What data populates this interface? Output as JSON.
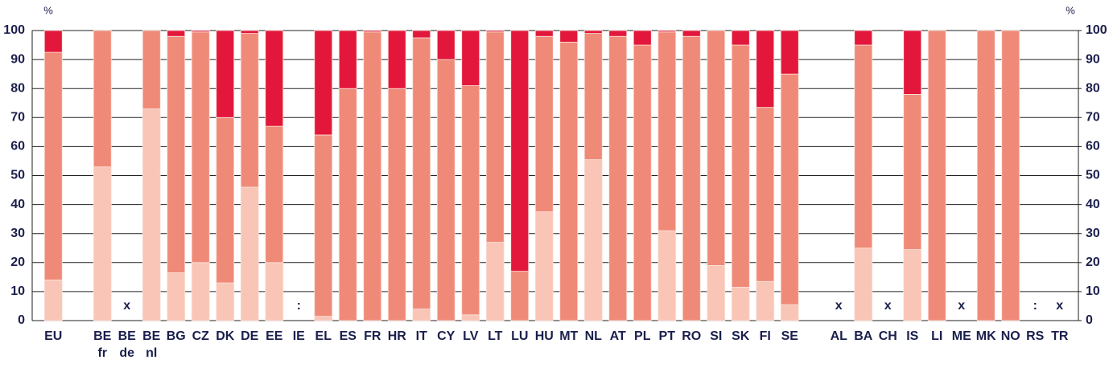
{
  "chart_data": {
    "type": "stacked_bar",
    "y_label": "%",
    "y2_label": "%",
    "categories": [
      "EU",
      null,
      "BE\nfr",
      "BE\nde",
      "BE\nnl",
      "BG",
      "CZ",
      "DK",
      "DE",
      "EE",
      "IE",
      "EL",
      "ES",
      "FR",
      "HR",
      "IT",
      "CY",
      "LV",
      "LT",
      "LU",
      "HU",
      "MT",
      "NL",
      "AT",
      "PL",
      "PT",
      "RO",
      "SI",
      "SK",
      "FI",
      "SE",
      null,
      "AL",
      "BA",
      "CH",
      "IS",
      "LI",
      "ME",
      "MK",
      "NO",
      "RS",
      "TR"
    ],
    "category_notes": [
      null,
      null,
      null,
      "x",
      null,
      null,
      null,
      null,
      null,
      null,
      ":",
      null,
      null,
      null,
      null,
      null,
      null,
      null,
      null,
      null,
      null,
      null,
      null,
      null,
      null,
      null,
      null,
      null,
      null,
      null,
      null,
      null,
      "x",
      null,
      "x",
      null,
      null,
      "x",
      null,
      null,
      ":",
      "x"
    ],
    "series": [
      {
        "color": "#f9c5b6",
        "values": [
          14,
          null,
          53,
          null,
          73,
          16.5,
          20,
          13,
          46,
          20,
          null,
          1.5,
          0,
          0,
          0,
          4,
          0,
          2,
          27,
          0,
          37.5,
          0,
          55.5,
          0,
          0,
          31,
          0,
          19,
          11.5,
          13.5,
          5.5,
          null,
          null,
          25,
          null,
          24.5,
          0,
          null,
          0,
          0,
          null,
          null
        ]
      },
      {
        "color": "#f08a78",
        "values": [
          78.5,
          null,
          47,
          null,
          27,
          81.5,
          79.5,
          57,
          53,
          47,
          null,
          62.5,
          80,
          99.5,
          80,
          93.5,
          90,
          79,
          72.5,
          17,
          60.5,
          96,
          43.5,
          98,
          95,
          68.5,
          98,
          81,
          83.5,
          60,
          79.5,
          null,
          null,
          70,
          null,
          53.5,
          100,
          null,
          100,
          100,
          null,
          null
        ]
      },
      {
        "color": "#e3173b",
        "values": [
          7.5,
          null,
          0,
          null,
          0,
          2,
          0.5,
          30,
          1,
          33,
          null,
          36,
          20,
          0.5,
          20,
          2.5,
          10,
          19,
          0.5,
          83,
          2,
          4,
          1,
          2,
          5,
          0.5,
          2,
          0,
          5,
          26.5,
          15,
          null,
          null,
          5,
          null,
          22,
          0,
          null,
          0,
          0,
          null,
          null
        ]
      }
    ],
    "ylim": [
      0,
      100
    ],
    "yticks": [
      0,
      10,
      20,
      30,
      40,
      50,
      60,
      70,
      80,
      90,
      100
    ],
    "y2lim": [
      0,
      100
    ],
    "y2ticks": [
      0,
      10,
      20,
      30,
      40,
      50,
      60,
      70,
      80,
      90,
      100
    ],
    "grid": true
  }
}
